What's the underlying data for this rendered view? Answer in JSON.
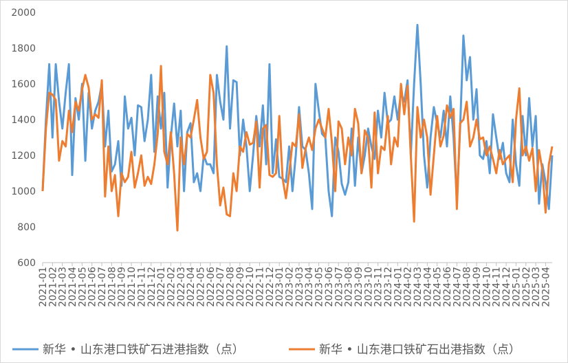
{
  "chart_data": {
    "type": "line",
    "categories": [
      "2021-01",
      null,
      null,
      "2021-02",
      null,
      null,
      "2021-03",
      null,
      null,
      "2021-04",
      null,
      null,
      "2021-05",
      null,
      null,
      "2021-06",
      null,
      null,
      "2021-07",
      null,
      null,
      "2021-08",
      null,
      null,
      "2021-09",
      null,
      null,
      "2021-10",
      null,
      null,
      "2021-11",
      null,
      null,
      "2021-12",
      null,
      null,
      "2022-01",
      null,
      null,
      "2022-02",
      null,
      null,
      "2022-03",
      null,
      null,
      "2022-04",
      null,
      null,
      "2022-05",
      null,
      null,
      "2022-06",
      null,
      null,
      "2022-07",
      null,
      null,
      "2022-08",
      null,
      null,
      "2022-09",
      null,
      null,
      "2022-10",
      null,
      null,
      "2022-11",
      null,
      null,
      "2022-12",
      null,
      null,
      "2023-01",
      null,
      null,
      "2023-02",
      null,
      null,
      "2023-03",
      null,
      null,
      "2023-04",
      null,
      null,
      "2023-05",
      null,
      null,
      "2023-06",
      null,
      null,
      "2023-07",
      null,
      null,
      "2023-08",
      null,
      null,
      "2023-09",
      null,
      null,
      "2023-10",
      null,
      null,
      "2023-11",
      null,
      null,
      "2023-12",
      null,
      null,
      "2024-01",
      null,
      null,
      "2024-02",
      null,
      null,
      "2024-03",
      null,
      null,
      "2024-04",
      null,
      null,
      "2024-05",
      null,
      null,
      "2024-06",
      null,
      null,
      "2024-07",
      null,
      null,
      "2024-08",
      null,
      null,
      "2024-09",
      null,
      null,
      "2024-10",
      null,
      null,
      "2024-11",
      null,
      null,
      "2024-12",
      null,
      null,
      "2025-01",
      null,
      null,
      "2025-02",
      null,
      null,
      "2025-03",
      null,
      null,
      "2025-04",
      null,
      null
    ],
    "series": [
      {
        "name": "新华 • 山东港口铁矿石进港指数（点）",
        "color": "#5b9bd5",
        "values": [
          1000,
          1400,
          1710,
          1300,
          1710,
          1500,
          1350,
          1550,
          1710,
          1090,
          1520,
          1400,
          1600,
          1170,
          1550,
          1350,
          1450,
          1500,
          1600,
          1250,
          1450,
          1110,
          1150,
          1280,
          1030,
          1530,
          1350,
          1410,
          1200,
          1480,
          1470,
          1280,
          1400,
          1650,
          1220,
          1530,
          1350,
          1550,
          1020,
          1300,
          1490,
          1250,
          1450,
          1000,
          1330,
          1380,
          1050,
          1100,
          1000,
          1200,
          1150,
          1150,
          1100,
          1650,
          1500,
          1400,
          1810,
          1350,
          1620,
          1610,
          1200,
          1400,
          1250,
          1000,
          1200,
          1420,
          1250,
          1480,
          1150,
          1710,
          1100,
          1290,
          1080,
          1070,
          1050,
          1250,
          1000,
          1200,
          1470,
          1250,
          1230,
          1100,
          900,
          1600,
          1450,
          1320,
          1300,
          1000,
          860,
          1300,
          1220,
          1040,
          980,
          1050,
          1350,
          1030,
          1300,
          1100,
          1200,
          1350,
          1250,
          1180,
          1450,
          1300,
          1550,
          1380,
          1400,
          1530,
          1400,
          1550,
          1500,
          1620,
          1200,
          1600,
          1930,
          1600,
          1200,
          1020,
          1300,
          1470,
          1380,
          1300,
          1450,
          1250,
          1530,
          1300,
          950,
          1350,
          1870,
          1620,
          1750,
          1400,
          1570,
          1200,
          1180,
          1280,
          1100,
          1430,
          1300,
          1180,
          1270,
          1100,
          1050,
          1400,
          1150,
          1030,
          1420,
          1200,
          1520,
          1250,
          1420,
          930,
          1150,
          1050,
          900,
          1200
        ]
      },
      {
        "name": "新华 • 山东港口铁矿石出港指数（点）",
        "color": "#ed7d31",
        "values": [
          1000,
          1350,
          1550,
          1540,
          1510,
          1170,
          1280,
          1250,
          1450,
          1330,
          1500,
          1450,
          1570,
          1650,
          1580,
          1400,
          1430,
          1410,
          1620,
          970,
          1250,
          1000,
          1090,
          860,
          1100,
          1050,
          1080,
          1220,
          1020,
          1100,
          1200,
          1030,
          1080,
          1040,
          1150,
          1320,
          1700,
          1220,
          1150,
          1330,
          1100,
          780,
          1300,
          1150,
          1320,
          1300,
          1400,
          1510,
          1300,
          1180,
          1220,
          1650,
          1550,
          1150,
          920,
          1020,
          870,
          860,
          1100,
          1000,
          1250,
          1220,
          1330,
          1260,
          1270,
          1390,
          1020,
          1350,
          1370,
          1090,
          1080,
          1100,
          1420,
          1070,
          960,
          1100,
          1270,
          1250,
          1430,
          1130,
          1240,
          1300,
          1230,
          1350,
          1400,
          1350,
          1300,
          1460,
          1270,
          1000,
          1390,
          1350,
          1150,
          1300,
          1200,
          1460,
          1380,
          1100,
          1340,
          1300,
          1020,
          1440,
          1100,
          1250,
          1230,
          1420,
          1150,
          1300,
          1250,
          1600,
          1430,
          1590,
          1200,
          830,
          1470,
          1300,
          1400,
          1300,
          980,
          1200,
          1420,
          1250,
          1310,
          1480,
          1410,
          1460,
          900,
          1380,
          1400,
          1500,
          1250,
          1300,
          1400,
          1290,
          1300,
          1200,
          1250,
          1180,
          1100,
          1230,
          1150,
          1180,
          1200,
          1050,
          1400,
          1575,
          1200,
          1250,
          1170,
          1240,
          1000,
          1230,
          1120,
          880,
          1150,
          1250
        ]
      }
    ],
    "ylim": [
      600,
      2000
    ],
    "yticks": [
      600,
      800,
      1000,
      1200,
      1400,
      1600,
      1800,
      2000
    ],
    "grid": false,
    "legend": "bottom"
  }
}
